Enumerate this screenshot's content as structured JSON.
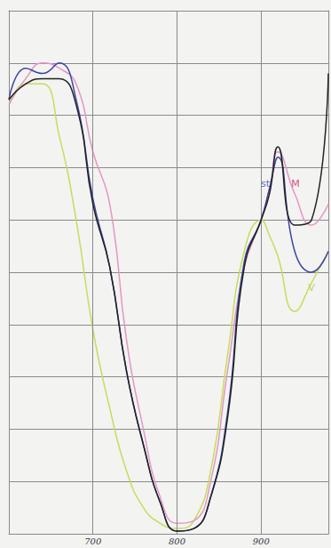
{
  "chart_data": {
    "type": "line",
    "x": [
      600,
      620,
      640,
      660,
      680,
      700,
      720,
      740,
      760,
      780,
      800,
      820,
      840,
      860,
      880,
      900,
      910,
      920,
      940,
      960,
      980
    ],
    "series": [
      {
        "color": "#c8dc5a",
        "values": [
          82,
          86,
          86,
          76,
          60,
          39,
          24,
          12,
          5,
          2,
          1,
          2.5,
          12,
          34,
          54,
          60,
          57,
          53,
          42.5,
          48,
          54
        ]
      },
      {
        "color": "#e596c4",
        "values": [
          82,
          87,
          90,
          89,
          86,
          73,
          63,
          37,
          20,
          7,
          2,
          2.5,
          10,
          31,
          51,
          60,
          66,
          73,
          65,
          59,
          63
        ]
      },
      {
        "color": "#3a44a8",
        "values": [
          83,
          89,
          88,
          90,
          83,
          64,
          51,
          31,
          17,
          6,
          0.5,
          1,
          7,
          23,
          52,
          60,
          66,
          72,
          54,
          50,
          54
        ]
      },
      {
        "color": "#222222",
        "values": [
          83,
          86,
          87,
          87,
          82,
          63,
          51,
          31,
          17,
          6,
          0.5,
          1,
          7,
          22,
          51,
          60,
          65,
          74,
          59,
          60,
          88
        ]
      }
    ],
    "annotations": [
      {
        "text": "st",
        "x": 905,
        "y": 67,
        "color": "#3a44a8"
      },
      {
        "text": "M",
        "x": 941,
        "y": 67,
        "color": "#d0206a"
      },
      {
        "text": "V",
        "x": 960,
        "y": 47,
        "color": "#b0cc40"
      }
    ],
    "xlim": [
      600,
      980
    ],
    "xticks": [
      700,
      800,
      900
    ],
    "ylim": [
      0,
      100
    ],
    "yticks": [
      0,
      10,
      20,
      30,
      40,
      50,
      60,
      70,
      80,
      90,
      100
    ],
    "grid": true,
    "tick_labels": "x"
  }
}
